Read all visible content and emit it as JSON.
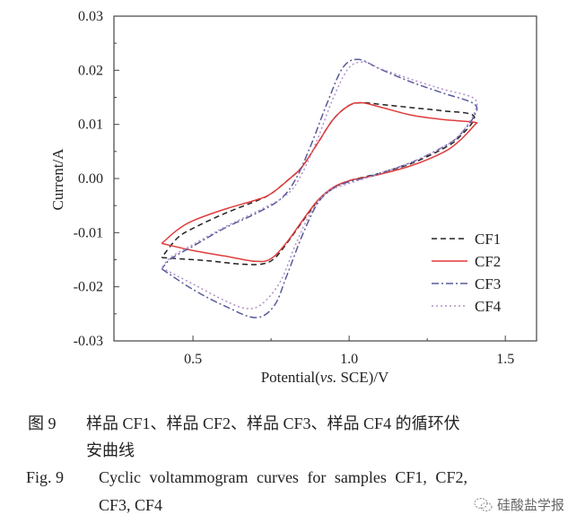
{
  "chart_data": {
    "type": "line",
    "title": "",
    "xlabel": "Potential(vs. SCE)/V",
    "xlabel_parts": [
      "Potential(",
      "vs.",
      " SCE)/V"
    ],
    "ylabel": "Current/A",
    "xlim": [
      0.247,
      1.6
    ],
    "ylim": [
      -0.03,
      0.03
    ],
    "xticks": [
      0.5,
      1.0,
      1.5
    ],
    "xtick_labels": [
      "0.5",
      "1.0",
      "1.5"
    ],
    "yticks": [
      0.03,
      0.02,
      0.01,
      0.0,
      -0.01,
      -0.02,
      -0.03
    ],
    "ytick_labels": [
      "0.03",
      "0.02",
      "0.01",
      "0.00",
      "-0.01",
      "-0.02",
      "-0.03"
    ],
    "grid": false,
    "legend_position": "bottom-right",
    "series": [
      {
        "name": "CF1",
        "color": "#222222",
        "dash": "6,4",
        "points": [
          [
            0.4,
            -0.0146
          ],
          [
            0.45,
            -0.0148
          ],
          [
            0.55,
            -0.0152
          ],
          [
            0.65,
            -0.0158
          ],
          [
            0.72,
            -0.0158
          ],
          [
            0.76,
            -0.0148
          ],
          [
            0.8,
            -0.012
          ],
          [
            0.85,
            -0.008
          ],
          [
            0.9,
            -0.0042
          ],
          [
            0.95,
            -0.0017
          ],
          [
            1.0,
            -0.0004
          ],
          [
            1.05,
            0.0003
          ],
          [
            1.1,
            0.001
          ],
          [
            1.2,
            0.0028
          ],
          [
            1.3,
            0.0055
          ],
          [
            1.35,
            0.0075
          ],
          [
            1.4,
            0.0115
          ],
          [
            1.3,
            0.0125
          ],
          [
            1.2,
            0.0131
          ],
          [
            1.1,
            0.0137
          ],
          [
            1.04,
            0.014
          ],
          [
            1.0,
            0.0135
          ],
          [
            0.95,
            0.011
          ],
          [
            0.9,
            0.0066
          ],
          [
            0.85,
            0.0022
          ],
          [
            0.81,
            0.0
          ],
          [
            0.75,
            -0.0028
          ],
          [
            0.7,
            -0.0042
          ],
          [
            0.6,
            -0.0065
          ],
          [
            0.5,
            -0.0092
          ],
          [
            0.45,
            -0.011
          ],
          [
            0.4,
            -0.0146
          ]
        ]
      },
      {
        "name": "CF2",
        "color": "#e03c3c",
        "dash": "",
        "points": [
          [
            0.4,
            -0.012
          ],
          [
            0.5,
            -0.0133
          ],
          [
            0.6,
            -0.0143
          ],
          [
            0.7,
            -0.0153
          ],
          [
            0.75,
            -0.0148
          ],
          [
            0.8,
            -0.0118
          ],
          [
            0.85,
            -0.0078
          ],
          [
            0.9,
            -0.004
          ],
          [
            0.95,
            -0.0016
          ],
          [
            1.0,
            -0.0004
          ],
          [
            1.05,
            0.0002
          ],
          [
            1.1,
            0.0008
          ],
          [
            1.2,
            0.0024
          ],
          [
            1.3,
            0.0048
          ],
          [
            1.35,
            0.0068
          ],
          [
            1.4,
            0.0098
          ],
          [
            1.4,
            0.0104
          ],
          [
            1.3,
            0.0109
          ],
          [
            1.2,
            0.0117
          ],
          [
            1.1,
            0.0132
          ],
          [
            1.04,
            0.014
          ],
          [
            1.0,
            0.0135
          ],
          [
            0.95,
            0.011
          ],
          [
            0.9,
            0.0066
          ],
          [
            0.85,
            0.0022
          ],
          [
            0.81,
            0.0
          ],
          [
            0.75,
            -0.0028
          ],
          [
            0.7,
            -0.004
          ],
          [
            0.6,
            -0.0057
          ],
          [
            0.5,
            -0.0078
          ],
          [
            0.45,
            -0.0095
          ],
          [
            0.4,
            -0.012
          ]
        ]
      },
      {
        "name": "CF3",
        "color": "#5a5a9a",
        "dash": "8,3,2,3",
        "points": [
          [
            0.4,
            -0.0167
          ],
          [
            0.5,
            -0.0205
          ],
          [
            0.6,
            -0.0235
          ],
          [
            0.7,
            -0.0257
          ],
          [
            0.76,
            -0.0235
          ],
          [
            0.8,
            -0.018
          ],
          [
            0.85,
            -0.0105
          ],
          [
            0.9,
            -0.0045
          ],
          [
            0.95,
            -0.0018
          ],
          [
            1.0,
            -0.0006
          ],
          [
            1.05,
            0.0001
          ],
          [
            1.1,
            0.001
          ],
          [
            1.2,
            0.003
          ],
          [
            1.3,
            0.0058
          ],
          [
            1.35,
            0.0078
          ],
          [
            1.4,
            0.0115
          ],
          [
            1.4,
            0.0138
          ],
          [
            1.3,
            0.0158
          ],
          [
            1.2,
            0.0178
          ],
          [
            1.1,
            0.0202
          ],
          [
            1.03,
            0.022
          ],
          [
            0.98,
            0.0205
          ],
          [
            0.93,
            0.014
          ],
          [
            0.88,
            0.0065
          ],
          [
            0.83,
            0.0
          ],
          [
            0.78,
            -0.0038
          ],
          [
            0.7,
            -0.0065
          ],
          [
            0.6,
            -0.0092
          ],
          [
            0.5,
            -0.0125
          ],
          [
            0.43,
            -0.0148
          ],
          [
            0.4,
            -0.0167
          ]
        ]
      },
      {
        "name": "CF4",
        "color": "#b090c8",
        "dash": "2,3",
        "points": [
          [
            0.4,
            -0.0165
          ],
          [
            0.5,
            -0.0195
          ],
          [
            0.6,
            -0.0225
          ],
          [
            0.67,
            -0.024
          ],
          [
            0.72,
            -0.0232
          ],
          [
            0.78,
            -0.019
          ],
          [
            0.83,
            -0.012
          ],
          [
            0.88,
            -0.006
          ],
          [
            0.93,
            -0.0025
          ],
          [
            1.0,
            -0.0009
          ],
          [
            1.05,
            0.0
          ],
          [
            1.1,
            0.001
          ],
          [
            1.2,
            0.003
          ],
          [
            1.3,
            0.0058
          ],
          [
            1.35,
            0.0078
          ],
          [
            1.4,
            0.012
          ],
          [
            1.4,
            0.0148
          ],
          [
            1.3,
            0.0165
          ],
          [
            1.2,
            0.0183
          ],
          [
            1.1,
            0.0203
          ],
          [
            1.05,
            0.0215
          ],
          [
            1.0,
            0.0205
          ],
          [
            0.95,
            0.015
          ],
          [
            0.9,
            0.0075
          ],
          [
            0.85,
            0.001
          ],
          [
            0.8,
            -0.003
          ],
          [
            0.7,
            -0.0062
          ],
          [
            0.6,
            -0.009
          ],
          [
            0.5,
            -0.0122
          ],
          [
            0.43,
            -0.0145
          ],
          [
            0.4,
            -0.0165
          ]
        ]
      }
    ]
  },
  "caption": {
    "cn_label": "图 9",
    "cn_line1": "样品 CF1、样品 CF2、样品 CF3、样品 CF4 的循环伏",
    "cn_line2": "安曲线",
    "en_label": "Fig. 9",
    "en_line1": "Cyclic voltammogram curves for samples CF1, CF2,",
    "en_line2": "CF3, CF4"
  },
  "watermark": {
    "text": "硅酸盐学报",
    "icon": "wechat-icon"
  }
}
